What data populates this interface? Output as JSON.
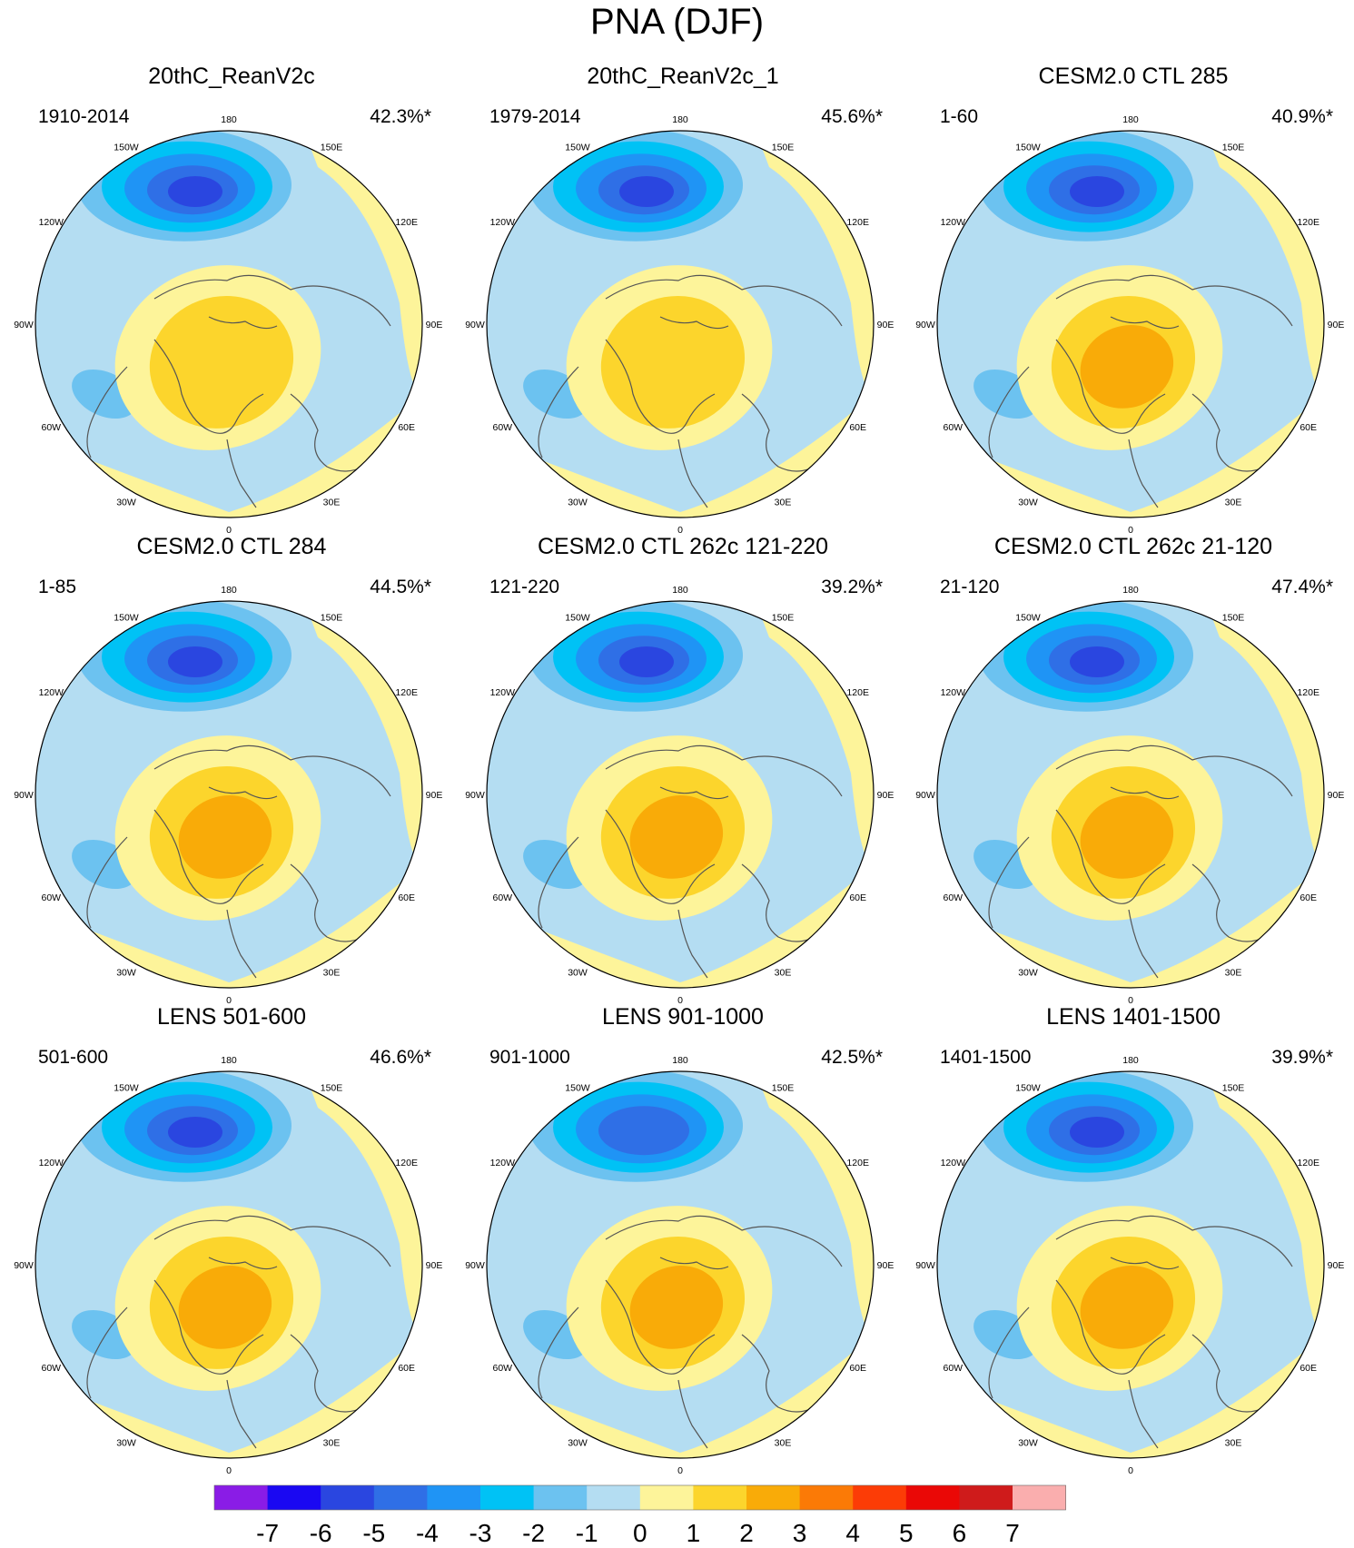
{
  "title": "PNA (DJF)",
  "panels": [
    {
      "title": "20thC_ReanV2c",
      "range": "1910-2014",
      "pct": "42.3%*",
      "max_neg": -6,
      "max_pos": 2
    },
    {
      "title": "20thC_ReanV2c_1",
      "range": "1979-2014",
      "pct": "45.6%*",
      "max_neg": -6,
      "max_pos": 2
    },
    {
      "title": "CESM2.0 CTL 285",
      "range": "1-60",
      "pct": "40.9%*",
      "max_neg": -6,
      "max_pos": 3
    },
    {
      "title": "CESM2.0 CTL 284",
      "range": "1-85",
      "pct": "44.5%*",
      "max_neg": -6,
      "max_pos": 3
    },
    {
      "title": "CESM2.0 CTL 262c 121-220",
      "range": "121-220",
      "pct": "39.2%*",
      "max_neg": -6,
      "max_pos": 3
    },
    {
      "title": "CESM2.0 CTL 262c 21-120",
      "range": "21-120",
      "pct": "47.4%*",
      "max_neg": -6,
      "max_pos": 3
    },
    {
      "title": "LENS 501-600",
      "range": "501-600",
      "pct": "46.6%*",
      "max_neg": -6,
      "max_pos": 3
    },
    {
      "title": "LENS 901-1000",
      "range": "901-1000",
      "pct": "42.5%*",
      "max_neg": -5,
      "max_pos": 3
    },
    {
      "title": "LENS 1401-1500",
      "range": "1401-1500",
      "pct": "39.9%*",
      "max_neg": -6,
      "max_pos": 3
    }
  ],
  "lon_labels": [
    "180",
    "150E",
    "120E",
    "90E",
    "60E",
    "30E",
    "0",
    "30W",
    "60W",
    "90W",
    "120W",
    "150W"
  ],
  "colorbar": {
    "labels": [
      "-7",
      "-6",
      "-5",
      "-4",
      "-3",
      "-2",
      "-1",
      "0",
      "1",
      "2",
      "3",
      "4",
      "5",
      "6",
      "7"
    ],
    "colors": [
      "#8a1ce6",
      "#1a08f2",
      "#2a46e0",
      "#2f6fe6",
      "#1f94f5",
      "#00c2f5",
      "#6cc2f0",
      "#b4ddf2",
      "#fdf49a",
      "#fcd52c",
      "#f9ab08",
      "#fb7a06",
      "#fc3c06",
      "#ea0806",
      "#cf1b1b",
      "#faaeae"
    ]
  }
}
